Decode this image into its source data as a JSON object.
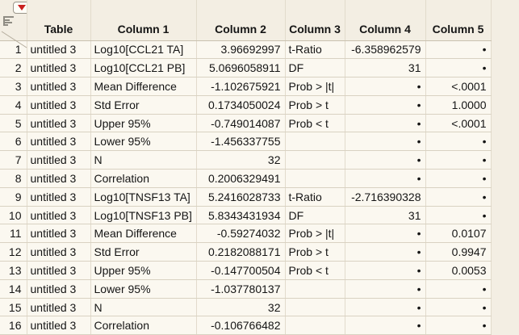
{
  "app": "JMP data table",
  "colors": {
    "background": "#f3eee3",
    "cell_background": "#fbf8f0",
    "gridline": "#d9d2c2",
    "accent_red": "#c92020",
    "text": "#151515"
  },
  "corner": {
    "red_triangle_icon": "red-triangle-menu",
    "panel_icon": "table-panel-list",
    "diagonal": "corner-divider"
  },
  "table": {
    "headers": [
      "",
      "Table",
      "Column 1",
      "Column 2",
      "Column 3",
      "Column 4",
      "Column 5"
    ],
    "missing_marker": "•",
    "rows": [
      {
        "num": "1",
        "table": "untitled 3",
        "column1": "Log10[CCL21 TA]",
        "column2": "3.96692997",
        "column3": "t-Ratio",
        "column4": "-6.358962579",
        "column5": "•"
      },
      {
        "num": "2",
        "table": "untitled 3",
        "column1": "Log10[CCL21 PB]",
        "column2": "5.0696058911",
        "column3": "DF",
        "column4": "31",
        "column5": "•"
      },
      {
        "num": "3",
        "table": "untitled 3",
        "column1": "Mean Difference",
        "column2": "-1.102675921",
        "column3": "Prob > |t|",
        "column4": "•",
        "column5": "<.0001"
      },
      {
        "num": "4",
        "table": "untitled 3",
        "column1": "Std Error",
        "column2": "0.1734050024",
        "column3": "Prob > t",
        "column4": "•",
        "column5": "1.0000"
      },
      {
        "num": "5",
        "table": "untitled 3",
        "column1": "Upper 95%",
        "column2": "-0.749014087",
        "column3": "Prob < t",
        "column4": "•",
        "column5": "<.0001"
      },
      {
        "num": "6",
        "table": "untitled 3",
        "column1": "Lower 95%",
        "column2": "-1.456337755",
        "column3": "",
        "column4": "•",
        "column5": "•"
      },
      {
        "num": "7",
        "table": "untitled 3",
        "column1": "N",
        "column2": "32",
        "column3": "",
        "column4": "•",
        "column5": "•"
      },
      {
        "num": "8",
        "table": "untitled 3",
        "column1": "Correlation",
        "column2": "0.2006329491",
        "column3": "",
        "column4": "•",
        "column5": "•"
      },
      {
        "num": "9",
        "table": "untitled 3",
        "column1": "Log10[TNSF13 TA]",
        "column2": "5.2416028733",
        "column3": "t-Ratio",
        "column4": "-2.716390328",
        "column5": "•"
      },
      {
        "num": "10",
        "table": "untitled 3",
        "column1": "Log10[TNSF13 PB]",
        "column2": "5.8343431934",
        "column3": "DF",
        "column4": "31",
        "column5": "•"
      },
      {
        "num": "11",
        "table": "untitled 3",
        "column1": "Mean Difference",
        "column2": "-0.59274032",
        "column3": "Prob > |t|",
        "column4": "•",
        "column5": "0.0107"
      },
      {
        "num": "12",
        "table": "untitled 3",
        "column1": "Std Error",
        "column2": "0.2182088171",
        "column3": "Prob > t",
        "column4": "•",
        "column5": "0.9947"
      },
      {
        "num": "13",
        "table": "untitled 3",
        "column1": "Upper 95%",
        "column2": "-0.147700504",
        "column3": "Prob < t",
        "column4": "•",
        "column5": "0.0053"
      },
      {
        "num": "14",
        "table": "untitled 3",
        "column1": "Lower 95%",
        "column2": "-1.037780137",
        "column3": "",
        "column4": "•",
        "column5": "•"
      },
      {
        "num": "15",
        "table": "untitled 3",
        "column1": "N",
        "column2": "32",
        "column3": "",
        "column4": "•",
        "column5": "•"
      },
      {
        "num": "16",
        "table": "untitled 3",
        "column1": "Correlation",
        "column2": "-0.106766482",
        "column3": "",
        "column4": "•",
        "column5": "•"
      }
    ]
  }
}
